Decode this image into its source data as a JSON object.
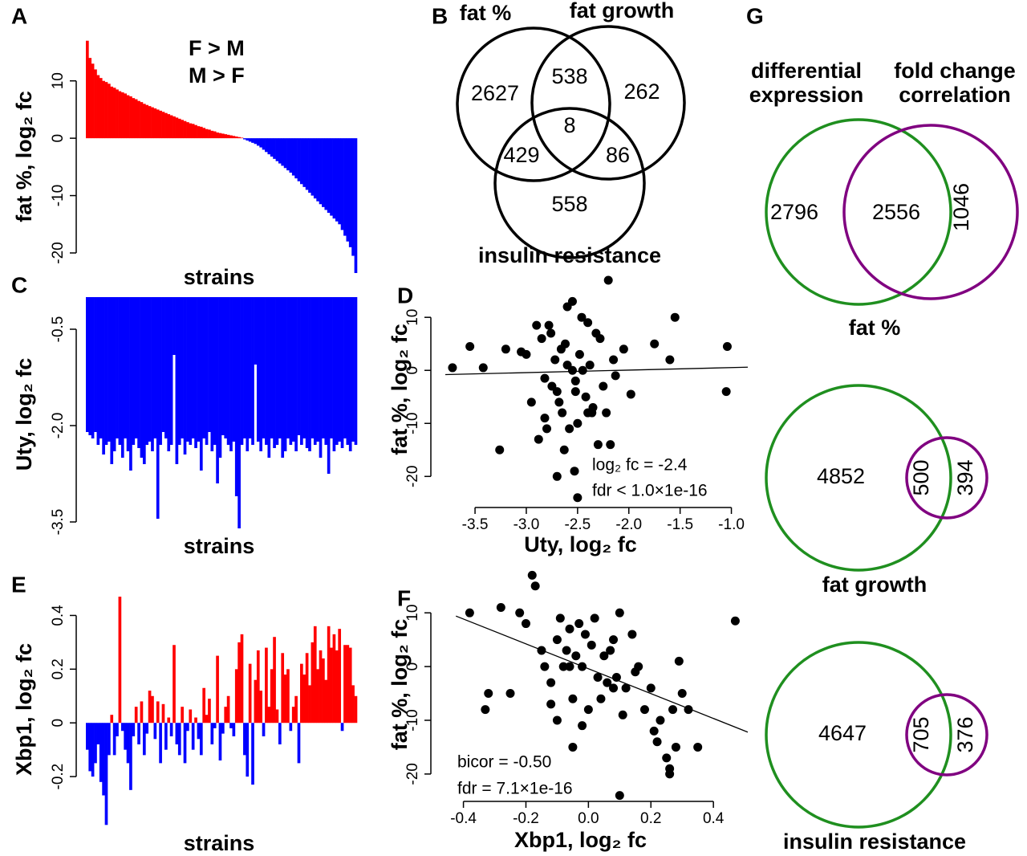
{
  "panel_letters": [
    "A",
    "B",
    "C",
    "D",
    "E",
    "F",
    "G"
  ],
  "chart_data": [
    {
      "type": "bar",
      "ylabel": "fat %, log₂ fc",
      "ylabel_color": "#000000",
      "xlabel": "strains",
      "positive_color": "#ff0000",
      "negative_color": "#0000ff",
      "legend": [
        {
          "name": "F > M",
          "color": "#ff0000"
        },
        {
          "name": "M > F",
          "color": "#0000ff"
        }
      ],
      "ylim": [
        -24.2,
        17.8
      ],
      "yticks": [
        -20,
        -10,
        0,
        10
      ],
      "values": [
        17,
        14,
        13,
        12,
        11,
        10.5,
        10,
        9.8,
        9.5,
        9,
        8.8,
        8.5,
        8.2,
        8,
        7.8,
        7.5,
        7.3,
        7,
        6.8,
        6.5,
        6.3,
        6,
        5.8,
        5.6,
        5.4,
        5.2,
        5,
        4.8,
        4.6,
        4.4,
        4.2,
        4,
        3.8,
        3.6,
        3.4,
        3.2,
        3,
        2.8,
        2.6,
        2.5,
        2.3,
        2.1,
        2,
        1.8,
        1.6,
        1.5,
        1.3,
        1.2,
        1,
        0.9,
        0.8,
        0.7,
        0.6,
        0.5,
        0.4,
        0.3,
        0.2,
        0.1,
        -0.2,
        -0.4,
        -0.6,
        -0.8,
        -1,
        -1.3,
        -1.6,
        -2,
        -2.4,
        -2.8,
        -3.2,
        -3.6,
        -4,
        -4.4,
        -4.8,
        -5.2,
        -5.6,
        -6,
        -6.5,
        -7,
        -7.5,
        -8,
        -8.5,
        -9,
        -9.5,
        -10,
        -10.5,
        -11,
        -11.5,
        -12,
        -12.5,
        -13,
        -13.5,
        -14,
        -14.5,
        -15,
        -16,
        -17,
        -18,
        -19,
        -20.5,
        -23.5
      ]
    },
    {
      "type": "bar",
      "ylabel": "Uty, log₂ fc",
      "ylabel_color": "#1f8f1f",
      "xlabel": "strains",
      "color": "#0000ff",
      "ylim": [
        -3.65,
        0
      ],
      "yticks": [
        -0.5,
        {
          "value": -2,
          "label": "-2.0"
        },
        -3.5
      ],
      "values": [
        -2.1,
        -2.15,
        -2.2,
        -2.1,
        -2.3,
        -2.2,
        -2.45,
        -2.3,
        -2.25,
        -2.6,
        -2.4,
        -2.2,
        -2.3,
        -2.5,
        -2.2,
        -2.4,
        -2.7,
        -2.3,
        -2.2,
        -2.35,
        -2.5,
        -2.6,
        -2.3,
        -2.25,
        -2.4,
        -2.2,
        -3.45,
        -2.3,
        -2.1,
        -2.2,
        -2.4,
        -2.3,
        -0.9,
        -2.6,
        -2.3,
        -2.2,
        -2.45,
        -2.25,
        -2.3,
        -2.2,
        -2.35,
        -2.25,
        -2.7,
        -2.2,
        -2.3,
        -2.1,
        -2.4,
        -2.3,
        -2.9,
        -2.5,
        -2.15,
        -2.2,
        -2.3,
        -2.4,
        -2.25,
        -3.1,
        -3.6,
        -2.3,
        -2.2,
        -2.4,
        -2.2,
        -2.3,
        -1.05,
        -2.25,
        -2.4,
        -2.2,
        -2.3,
        -2.5,
        -2.2,
        -2.35,
        -2.3,
        -2.2,
        -2.5,
        -2.4,
        -2.2,
        -2.3,
        -2.25,
        -2.4,
        -2.15,
        -2.3,
        -2.2,
        -2.35,
        -2.4,
        -2.2,
        -2.3,
        -2.25,
        -2.5,
        -2.2,
        -2.3,
        -2.75,
        -2.2,
        -2.4,
        -2.3,
        -2.25,
        -2.35,
        -2.2,
        -2.3,
        -2.4,
        -2.25,
        -2.3
      ]
    },
    {
      "type": "bar",
      "ylabel": "Xbp1, log₂ fc",
      "ylabel_color": "#8b008b",
      "xlabel": "strains",
      "positive_color": "#ff0000",
      "negative_color": "#0000ff",
      "ylim": [
        -0.4,
        0.5
      ],
      "yticks": [
        -0.2,
        0,
        0.2,
        0.4
      ],
      "values": [
        -0.1,
        -0.18,
        -0.2,
        -0.15,
        -0.08,
        -0.22,
        -0.27,
        -0.38,
        -0.12,
        0.03,
        -0.12,
        -0.05,
        0.47,
        -0.03,
        -0.1,
        -0.15,
        -0.25,
        -0.05,
        0.06,
        -0.08,
        0.08,
        -0.12,
        -0.04,
        0.12,
        0.1,
        -0.06,
        0.08,
        -0.15,
        0.07,
        -0.1,
        0.02,
        -0.05,
        0.29,
        -0.08,
        -0.12,
        0.06,
        -0.15,
        -0.03,
        0.05,
        -0.1,
        0.02,
        -0.06,
        -0.12,
        0.13,
        0.03,
        0.09,
        -0.08,
        -0.02,
        0.25,
        -0.14,
        -0.04,
        0.06,
        0.1,
        -0.02,
        -0.05,
        0.2,
        0.3,
        0.33,
        -0.12,
        -0.2,
        0.22,
        -0.23,
        0.16,
        0.27,
        0.12,
        -0.05,
        0.28,
        0.06,
        0.2,
        0.32,
        0.05,
        -0.08,
        0.26,
        0.18,
        0.2,
        -0.03,
        0.06,
        0.1,
        -0.15,
        0.22,
        0.18,
        0.26,
        0.14,
        0.3,
        0.36,
        0.2,
        0.27,
        0.24,
        0.16,
        0.36,
        0.28,
        0.33,
        0.27,
        0.35,
        -0.03,
        0.29,
        0.29,
        0.28,
        0.14,
        0.1
      ]
    },
    {
      "type": "scatter",
      "ylabel": "fat %, log₂ fc",
      "xlabel": "Uty, log₂ fc",
      "xlabel_color": "#1f8f1f",
      "color": "#000000",
      "xlim": [
        -3.79,
        -0.84
      ],
      "ylim": [
        -24.8,
        17.6
      ],
      "xticks": [
        -3.5,
        {
          "value": -3,
          "label": "-3.0"
        },
        -2.5,
        {
          "value": -2,
          "label": "-2.0"
        },
        -1.5,
        {
          "value": -1,
          "label": "-1.0"
        }
      ],
      "yticks": [
        -20,
        -10,
        0,
        10
      ],
      "annotations": [
        "log₂ fc = -2.4",
        "fdr < 1.0×1e-16"
      ],
      "trend_line": {
        "x": [
          -3.79,
          -0.84
        ],
        "y": [
          -0.8,
          0.6
        ]
      },
      "x": [
        -3.72,
        -3.55,
        -3.42,
        -3.26,
        -3.2,
        -3.05,
        -3.0,
        -2.95,
        -2.9,
        -2.88,
        -2.85,
        -2.82,
        -2.8,
        -2.78,
        -2.76,
        -2.75,
        -2.72,
        -2.7,
        -2.7,
        -2.68,
        -2.66,
        -2.65,
        -2.63,
        -2.62,
        -2.6,
        -2.6,
        -2.58,
        -2.55,
        -2.55,
        -2.53,
        -2.52,
        -2.5,
        -2.5,
        -2.48,
        -2.46,
        -2.45,
        -2.42,
        -2.4,
        -2.4,
        -2.38,
        -2.36,
        -2.35,
        -2.32,
        -2.3,
        -2.28,
        -2.25,
        -2.22,
        -2.2,
        -2.18,
        -2.15,
        -2.13,
        -2.05,
        -1.98,
        -1.75,
        -1.6,
        -1.55,
        -1.05,
        -1.04,
        -2.52,
        -2.82
      ],
      "y": [
        0.5,
        4.5,
        0.5,
        -15,
        4,
        3.5,
        3,
        -6,
        8.5,
        -13,
        6,
        -9,
        -11,
        8.5,
        7,
        -3,
        2,
        -4,
        -20,
        -6,
        4,
        -8,
        -15,
        5,
        12,
        1,
        -11,
        13,
        0,
        -19,
        -4,
        -24,
        -10,
        3,
        10,
        0,
        -5,
        9,
        -8,
        1,
        -8,
        -7,
        7,
        -14,
        6,
        -3,
        -8,
        17,
        -14,
        2,
        -1,
        4,
        -4.5,
        5,
        2,
        10,
        -4,
        4.5,
        -2,
        -1.5
      ]
    },
    {
      "type": "scatter",
      "ylabel": "fat %, log₂ fc",
      "xlabel": "Xbp1, log₂ fc",
      "xlabel_color": "#8b008b",
      "color": "#000000",
      "xlim": [
        -0.458,
        0.51
      ],
      "ylim": [
        -23.9,
        17.2
      ],
      "xticks": [
        -0.4,
        -0.2,
        {
          "value": 0,
          "label": "0.0"
        },
        0.2,
        0.4
      ],
      "yticks": [
        -20,
        -10,
        0,
        10
      ],
      "annotations": [
        "bicor = -0.50",
        "fdr = 7.1×1e-16"
      ],
      "trend_line": {
        "x": [
          -0.424,
          0.51
        ],
        "y": [
          9.4,
          -12.2
        ]
      },
      "x": [
        -0.38,
        -0.33,
        -0.32,
        -0.28,
        -0.25,
        -0.22,
        -0.2,
        -0.18,
        -0.17,
        -0.15,
        -0.14,
        -0.12,
        -0.1,
        -0.1,
        -0.09,
        -0.08,
        -0.07,
        -0.06,
        -0.05,
        -0.05,
        -0.04,
        -0.03,
        -0.02,
        -0.02,
        -0.01,
        0,
        0.01,
        0.02,
        0.03,
        0.04,
        0.05,
        0.06,
        0.07,
        0.08,
        0.09,
        0.1,
        0.1,
        0.11,
        0.12,
        0.14,
        0.15,
        0.16,
        0.18,
        0.2,
        0.21,
        0.22,
        0.23,
        0.25,
        0.26,
        0.26,
        0.27,
        0.28,
        0.29,
        0.3,
        0.32,
        0.35,
        0.47,
        -0.12,
        0.08,
        -0.06
      ],
      "y": [
        10,
        -8,
        -5,
        11,
        -5,
        10,
        8,
        17,
        15,
        3,
        0,
        -7,
        5,
        -10,
        9,
        0,
        3,
        7,
        -15,
        -6,
        2,
        8,
        0,
        -11,
        6,
        -8,
        4,
        9,
        -2,
        -6,
        2,
        -3,
        3,
        -4,
        -2,
        -24,
        10,
        -9,
        -4,
        6,
        -1,
        0,
        -8,
        -4,
        -12,
        -14,
        -10,
        -17,
        -20,
        -19,
        -8,
        -15,
        1,
        -5,
        -8,
        -15,
        8.5,
        -3,
        5,
        0
      ]
    }
  ],
  "venn_b": {
    "sets": [
      "fat %",
      "fat growth",
      "insulin resistance"
    ],
    "set_color": "#8b008b",
    "counts": [
      2627,
      538,
      262,
      8,
      429,
      86,
      558
    ]
  },
  "venn_g": {
    "headers": [
      {
        "lines": [
          "differential",
          "expression"
        ],
        "color": "#1f8f1f"
      },
      {
        "lines": [
          "fold change",
          "correlation"
        ],
        "color": "#8b008b"
      }
    ],
    "diagrams": [
      {
        "label": "fat %",
        "counts": [
          2796,
          2556,
          1046
        ]
      },
      {
        "label": "fat growth",
        "counts": [
          4852,
          500,
          394
        ]
      },
      {
        "label": "insulin resistance",
        "counts": [
          4647,
          705,
          376
        ]
      }
    ]
  }
}
